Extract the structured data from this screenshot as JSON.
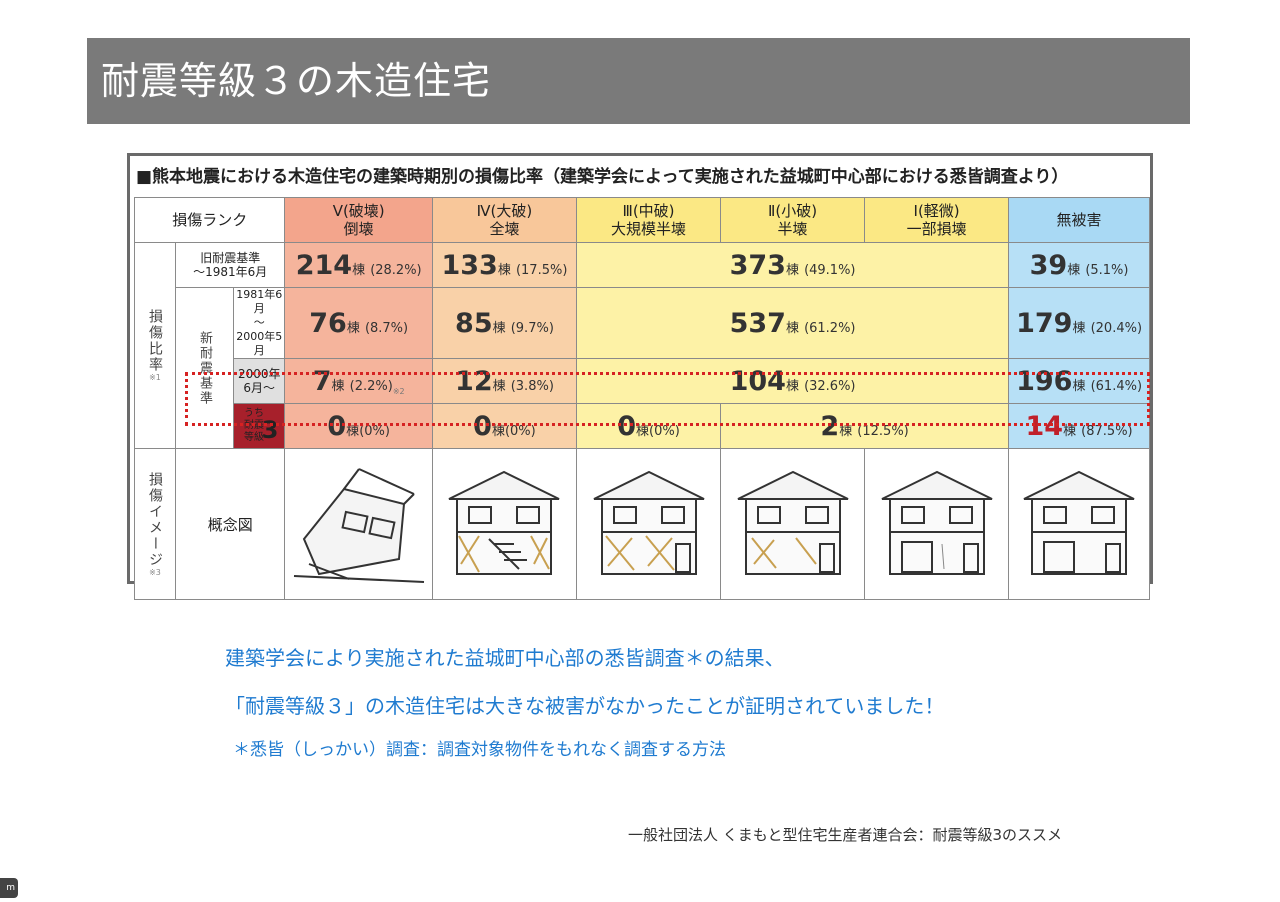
{
  "title": "耐震等級３の木造住宅",
  "table": {
    "heading": "■熊本地震における木造住宅の建築時期別の損傷比率（建築学会によって実施された益城町中心部における悉皆調査より）",
    "rank_label": "損傷ランク",
    "columns": [
      {
        "rank": "Ⅴ(破壊)",
        "desc": "倒壊",
        "color": "#f3a58c"
      },
      {
        "rank": "Ⅳ(大破)",
        "desc": "全壊",
        "color": "#f8c79a"
      },
      {
        "rank": "Ⅲ(中破)",
        "desc": "大規模半壊",
        "color": "#fbe884"
      },
      {
        "rank": "Ⅱ(小破)",
        "desc": "半壊",
        "color": "#fbe884"
      },
      {
        "rank": "Ⅰ(軽微)",
        "desc": "一部損壊",
        "color": "#fbe884"
      },
      {
        "rank": "無被害",
        "desc": "",
        "color": "#a9d9f4"
      }
    ],
    "side_label_ratio": "損傷比率",
    "side_label_new": "新耐震基準",
    "side_label_image": "損傷イメージ",
    "note_mark_1": "※1",
    "note_mark_3": "※3",
    "rows": {
      "old": {
        "label": "旧耐震基準",
        "label2": "〜1981年6月",
        "v5": {
          "num": "214",
          "unit": "棟",
          "pct": "(28.2%)"
        },
        "v4": {
          "num": "133",
          "unit": "棟",
          "pct": "(17.5%)"
        },
        "v321": {
          "num": "373",
          "unit": "棟",
          "pct": "(49.1%)"
        },
        "none": {
          "num": "39",
          "unit": "棟",
          "pct": "(5.1%)"
        }
      },
      "new1": {
        "label": "1981年6月",
        "label_mid": "〜",
        "label2": "2000年5月",
        "v5": {
          "num": "76",
          "unit": "棟",
          "pct": "(8.7%)"
        },
        "v4": {
          "num": "85",
          "unit": "棟",
          "pct": "(9.7%)"
        },
        "v321": {
          "num": "537",
          "unit": "棟",
          "pct": "(61.2%)"
        },
        "none": {
          "num": "179",
          "unit": "棟",
          "pct": "(20.4%)"
        }
      },
      "new2": {
        "label": "2000年",
        "label2": "6月〜",
        "v5": {
          "num": "7",
          "unit": "棟",
          "pct": "(2.2%)",
          "mark": "※2"
        },
        "v4": {
          "num": "12",
          "unit": "棟",
          "pct": "(3.8%)"
        },
        "v321": {
          "num": "104",
          "unit": "棟",
          "pct": "(32.6%)"
        },
        "none": {
          "num": "196",
          "unit": "棟",
          "pct": "(61.4%)"
        }
      },
      "grade3": {
        "label_small": "うち",
        "label_a": "耐震",
        "label_b": "等級",
        "label_big": "3",
        "v5": {
          "num": "0",
          "unit": "棟",
          "pct": "(0%)"
        },
        "v4": {
          "num": "0",
          "unit": "棟",
          "pct": "(0%)"
        },
        "v3": {
          "num": "0",
          "unit": "棟",
          "pct": "(0%)"
        },
        "v21": {
          "num": "2",
          "unit": "棟",
          "pct": "(12.5%)"
        },
        "none": {
          "num": "14",
          "unit": "棟",
          "pct": "(87.5%)"
        }
      }
    },
    "image_label": "概念図"
  },
  "caption_line1": "建築学会により実施された益城町中心部の悉皆調査＊の結果、",
  "caption_line2": "「耐震等級３」の木造住宅は大きな被害がなかったことが証明されていました！",
  "note": "＊悉皆（しっかい）調査：調査対象物件をもれなく調査する方法",
  "source": "一般社団法人 くまもと型住宅生産者連合会：耐震等級3のススメ",
  "corner_badge": "m",
  "highlight_color": "#d62222"
}
